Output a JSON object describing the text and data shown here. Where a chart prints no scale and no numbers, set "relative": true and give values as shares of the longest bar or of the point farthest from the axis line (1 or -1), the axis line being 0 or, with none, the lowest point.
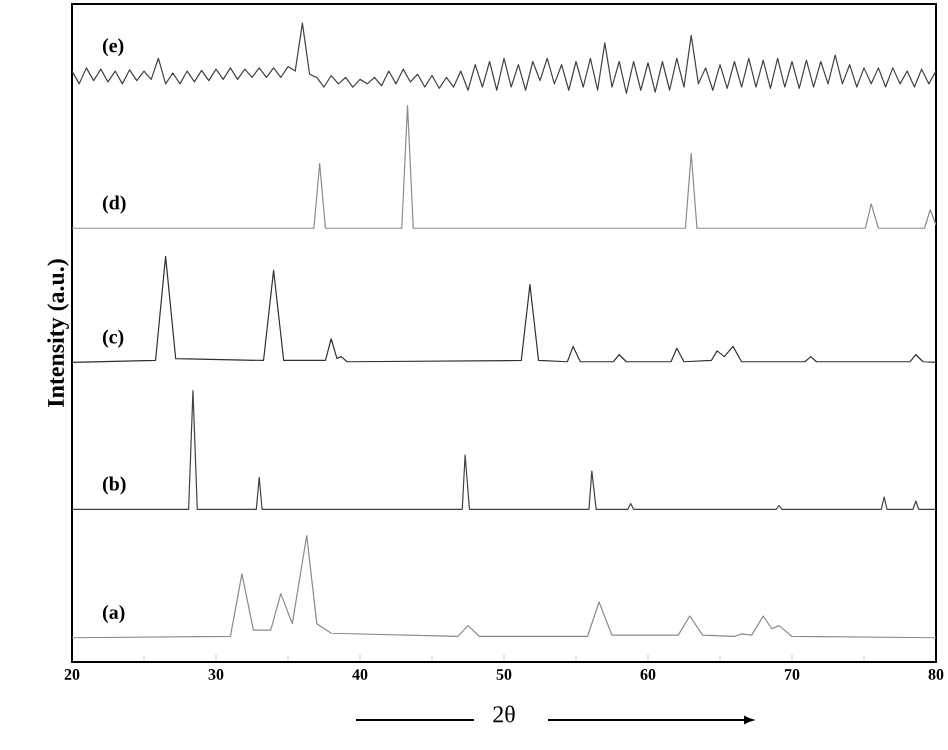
{
  "chart_data": {
    "type": "line",
    "relative": true,
    "xlabel": "2θ",
    "ylabel": "Intensity (a.u.)",
    "xlim": [
      20,
      80
    ],
    "xticks": [
      20,
      30,
      40,
      50,
      60,
      70,
      80
    ],
    "grid": false,
    "legend": false,
    "marker": "none",
    "line_style": "solid",
    "series": [
      {
        "name": "(a)",
        "color": "#8a8a8a",
        "x": [
          20,
          31.0,
          31.8,
          32.6,
          33.8,
          34.5,
          35.3,
          36.3,
          37.0,
          38,
          46.8,
          47.5,
          48.3,
          55.8,
          56.6,
          57.5,
          62.1,
          62.9,
          63.8,
          66.0,
          66.5,
          67.2,
          68.0,
          68.6,
          69.1,
          70.0,
          80
        ],
        "values": [
          0.038,
          0.04,
          0.138,
          0.05,
          0.05,
          0.107,
          0.06,
          0.198,
          0.06,
          0.045,
          0.04,
          0.057,
          0.04,
          0.04,
          0.094,
          0.042,
          0.042,
          0.072,
          0.042,
          0.04,
          0.044,
          0.042,
          0.072,
          0.052,
          0.057,
          0.04,
          0.038
        ]
      },
      {
        "name": "(b)",
        "color": "#404040",
        "x": [
          20,
          28.1,
          28.4,
          28.7,
          32.8,
          33.0,
          33.2,
          47.1,
          47.3,
          47.6,
          55.9,
          56.1,
          56.4,
          58.6,
          58.8,
          59.0,
          68.9,
          69.1,
          69.3,
          76.2,
          76.4,
          76.6,
          78.4,
          78.6,
          78.8,
          80
        ],
        "values": [
          0.239,
          0.239,
          0.425,
          0.239,
          0.239,
          0.289,
          0.239,
          0.239,
          0.324,
          0.239,
          0.239,
          0.299,
          0.239,
          0.239,
          0.248,
          0.239,
          0.239,
          0.245,
          0.239,
          0.239,
          0.258,
          0.239,
          0.239,
          0.252,
          0.239,
          0.239
        ]
      },
      {
        "name": "(c)",
        "color": "#303030",
        "x": [
          20,
          25.8,
          26.5,
          27.2,
          33.3,
          34.0,
          34.7,
          37.6,
          38.0,
          38.4,
          38.7,
          39.1,
          51.2,
          51.8,
          52.4,
          54.4,
          54.8,
          55.3,
          57.6,
          58.0,
          58.5,
          61.6,
          62.0,
          62.5,
          64.4,
          64.8,
          65.3,
          65.9,
          66.5,
          70.9,
          71.3,
          71.7,
          78.2,
          78.6,
          79.1,
          80
        ],
        "values": [
          0.469,
          0.472,
          0.635,
          0.475,
          0.472,
          0.613,
          0.472,
          0.472,
          0.506,
          0.475,
          0.478,
          0.47,
          0.472,
          0.591,
          0.472,
          0.47,
          0.494,
          0.47,
          0.47,
          0.481,
          0.47,
          0.47,
          0.491,
          0.47,
          0.472,
          0.487,
          0.478,
          0.494,
          0.47,
          0.47,
          0.478,
          0.47,
          0.47,
          0.481,
          0.47,
          0.469
        ]
      },
      {
        "name": "(d)",
        "color": "#8a8a8a",
        "x": [
          20,
          36.8,
          37.2,
          37.6,
          42.9,
          43.3,
          43.7,
          62.6,
          63.0,
          63.4,
          75.1,
          75.5,
          76.0,
          79.2,
          79.6,
          80
        ],
        "values": [
          0.679,
          0.679,
          0.78,
          0.679,
          0.679,
          0.871,
          0.679,
          0.679,
          0.796,
          0.679,
          0.679,
          0.717,
          0.679,
          0.679,
          0.708,
          0.684
        ]
      },
      {
        "name": "(e)",
        "color": "#404040",
        "x": [
          20,
          20.5,
          21,
          21.5,
          22,
          22.5,
          23,
          23.5,
          24,
          24.5,
          25,
          25.5,
          26,
          26.5,
          27,
          27.5,
          28,
          28.5,
          29,
          29.5,
          30,
          30.5,
          31,
          31.5,
          32,
          32.5,
          33,
          33.5,
          34,
          34.5,
          35,
          35.5,
          36,
          36.5,
          37,
          37.5,
          38,
          38.5,
          39,
          39.5,
          40,
          40.5,
          41,
          41.5,
          42,
          42.5,
          43,
          43.5,
          44,
          44.5,
          45,
          45.5,
          46,
          46.5,
          47,
          47.5,
          48,
          48.5,
          49,
          49.5,
          50,
          50.5,
          51,
          51.5,
          52,
          52.5,
          53,
          53.5,
          54,
          54.5,
          55,
          55.5,
          56,
          56.5,
          57,
          57.5,
          58,
          58.5,
          59,
          59.5,
          60,
          60.5,
          61,
          61.5,
          62,
          62.5,
          63,
          63.5,
          64,
          64.5,
          65,
          65.5,
          66,
          66.5,
          67,
          67.5,
          68,
          68.5,
          69,
          69.5,
          70,
          70.5,
          71,
          71.5,
          72,
          72.5,
          73,
          73.5,
          74,
          74.5,
          75,
          75.5,
          76,
          76.5,
          77,
          77.5,
          78,
          78.5,
          79,
          79.5,
          80
        ],
        "values": [
          0.925,
          0.905,
          0.93,
          0.91,
          0.928,
          0.908,
          0.925,
          0.905,
          0.927,
          0.91,
          0.925,
          0.912,
          0.945,
          0.905,
          0.922,
          0.905,
          0.925,
          0.908,
          0.926,
          0.91,
          0.928,
          0.912,
          0.93,
          0.912,
          0.928,
          0.915,
          0.93,
          0.915,
          0.93,
          0.915,
          0.932,
          0.925,
          1.0,
          0.92,
          0.915,
          0.9,
          0.918,
          0.905,
          0.915,
          0.9,
          0.912,
          0.905,
          0.915,
          0.902,
          0.925,
          0.905,
          0.928,
          0.908,
          0.92,
          0.9,
          0.918,
          0.898,
          0.915,
          0.9,
          0.925,
          0.895,
          0.935,
          0.9,
          0.94,
          0.895,
          0.945,
          0.9,
          0.935,
          0.895,
          0.94,
          0.91,
          0.945,
          0.905,
          0.935,
          0.895,
          0.94,
          0.9,
          0.945,
          0.895,
          0.969,
          0.9,
          0.94,
          0.89,
          0.94,
          0.895,
          0.938,
          0.892,
          0.94,
          0.895,
          0.945,
          0.9,
          0.981,
          0.905,
          0.93,
          0.895,
          0.935,
          0.898,
          0.94,
          0.9,
          0.945,
          0.9,
          0.942,
          0.898,
          0.945,
          0.9,
          0.94,
          0.898,
          0.942,
          0.9,
          0.94,
          0.905,
          0.95,
          0.905,
          0.935,
          0.9,
          0.93,
          0.905,
          0.93,
          0.9,
          0.93,
          0.905,
          0.925,
          0.9,
          0.928,
          0.905,
          0.925
        ]
      }
    ]
  }
}
